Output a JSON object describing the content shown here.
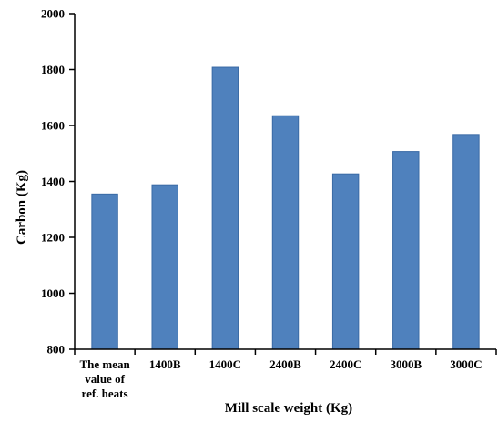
{
  "chart_data": {
    "type": "bar",
    "title": "",
    "xlabel": "Mill scale weight (Kg)",
    "ylabel": "Carbon (Kg)",
    "ylim": [
      800,
      2000
    ],
    "yticks": [
      800,
      1000,
      1200,
      1400,
      1600,
      1800,
      2000
    ],
    "categories": [
      "The mean value of ref. heats",
      "1400B",
      "1400C",
      "2400B",
      "2400C",
      "3000B",
      "3000C"
    ],
    "category_lines": [
      [
        "The mean",
        "value of",
        "ref. heats"
      ],
      [
        "1400B"
      ],
      [
        "1400C"
      ],
      [
        "2400B"
      ],
      [
        "2400C"
      ],
      [
        "3000B"
      ],
      [
        "3000C"
      ]
    ],
    "values": [
      1355,
      1388,
      1808,
      1635,
      1427,
      1507,
      1568
    ],
    "bar_color": "#4f81bd",
    "bar_edge_color": "#3a6aa5",
    "grid": false,
    "legend": "none"
  }
}
